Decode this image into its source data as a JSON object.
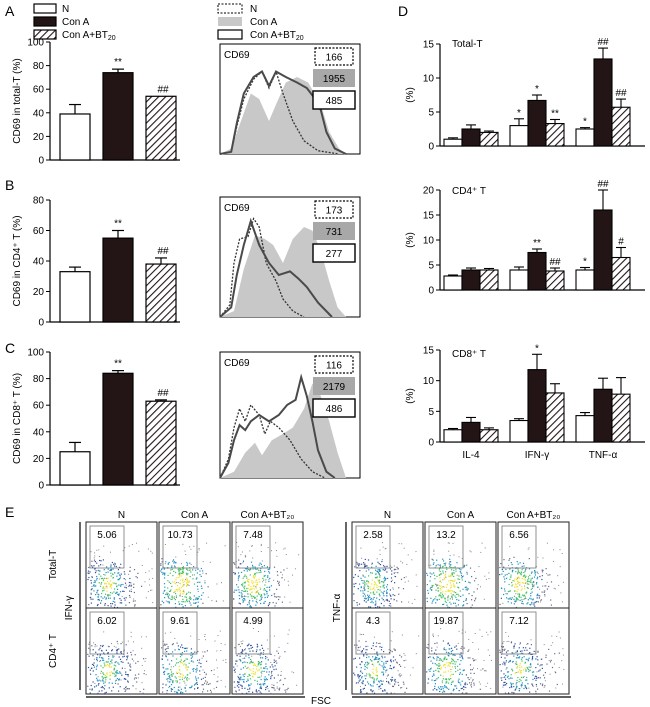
{
  "panels": {
    "A": "A",
    "B": "B",
    "C": "C",
    "D": "D",
    "E": "E"
  },
  "legend_bar": {
    "n": "N",
    "cona": "Con A",
    "conabt_main": "Con A+BT",
    "conabt_sub": "20"
  },
  "legend_hist": {
    "n": "N",
    "cona": "Con A",
    "conabt_main": "Con A+BT",
    "conabt_sub": "20"
  },
  "colors": {
    "n": "#ffffff",
    "cona": "#231416",
    "conabt_hatch": "#231416",
    "hist_fill": "#c8c8c8",
    "hist_line": "#4a4a4a"
  },
  "chart_data": [
    {
      "id": "A-bar",
      "type": "bar",
      "ylabel": "CD69 in total-T (%)",
      "yticks": [
        "0",
        "20",
        "40",
        "60",
        "80",
        "100"
      ],
      "ylim": [
        0,
        100
      ],
      "values": [
        39,
        74,
        54
      ],
      "errors": [
        8,
        3,
        0
      ],
      "annotations": [
        "",
        "**",
        "##"
      ]
    },
    {
      "id": "B-bar",
      "type": "bar",
      "ylabel": "CD69 in CD4⁺ T (%)",
      "yticks": [
        "0",
        "20",
        "40",
        "60",
        "80"
      ],
      "ylim": [
        0,
        80
      ],
      "values": [
        33,
        55,
        38
      ],
      "errors": [
        3,
        5,
        4
      ],
      "annotations": [
        "",
        "**",
        "##"
      ]
    },
    {
      "id": "C-bar",
      "type": "bar",
      "ylabel": "CD69 in CD8⁺ T (%)",
      "yticks": [
        "0",
        "20",
        "40",
        "60",
        "80",
        "100"
      ],
      "ylim": [
        0,
        100
      ],
      "values": [
        25,
        84,
        63
      ],
      "errors": [
        7,
        2,
        1
      ],
      "annotations": [
        "",
        "**",
        "##"
      ]
    },
    {
      "id": "A-hist",
      "type": "area",
      "label": "CD69",
      "mfi": {
        "n": "166",
        "cona": "1955",
        "conabt": "485"
      }
    },
    {
      "id": "B-hist",
      "type": "area",
      "label": "CD69",
      "mfi": {
        "n": "173",
        "cona": "731",
        "conabt": "277"
      }
    },
    {
      "id": "C-hist",
      "type": "area",
      "label": "CD69",
      "mfi": {
        "n": "116",
        "cona": "2179",
        "conabt": "486"
      }
    },
    {
      "id": "D-total",
      "type": "bar",
      "title": "Total-T",
      "ylabel": "(%)",
      "yticks": [
        "0",
        "5",
        "10",
        "15"
      ],
      "ylim": [
        0,
        15
      ],
      "categories": [
        "IL-4",
        "IFN-γ",
        "TNF-α"
      ],
      "series": [
        {
          "name": "N",
          "values": [
            1.0,
            3.0,
            2.5
          ],
          "errors": [
            0.2,
            1.0,
            0.2
          ]
        },
        {
          "name": "Con A",
          "values": [
            2.5,
            6.7,
            12.8
          ],
          "errors": [
            0.6,
            0.8,
            1.6
          ]
        },
        {
          "name": "Con A+BT20",
          "values": [
            2.0,
            3.3,
            5.7
          ],
          "errors": [
            0.2,
            0.6,
            1.2
          ]
        }
      ],
      "annotations": [
        [
          "",
          "*",
          "*"
        ],
        [
          "",
          "*",
          "##"
        ],
        [
          "",
          "**",
          "##"
        ]
      ]
    },
    {
      "id": "D-cd4",
      "type": "bar",
      "title": "CD4⁺ T",
      "ylabel": "(%)",
      "yticks": [
        "0",
        "5",
        "10",
        "15",
        "20"
      ],
      "ylim": [
        0,
        20
      ],
      "categories": [
        "IL-4",
        "IFN-γ",
        "TNF-α"
      ],
      "series": [
        {
          "name": "N",
          "values": [
            2.8,
            4.0,
            4.0
          ],
          "errors": [
            0.2,
            0.6,
            0.5
          ]
        },
        {
          "name": "Con A",
          "values": [
            4.0,
            7.5,
            16.0
          ],
          "errors": [
            0.4,
            0.7,
            4.0
          ]
        },
        {
          "name": "Con A+BT20",
          "values": [
            4.0,
            3.8,
            6.5
          ],
          "errors": [
            0.3,
            0.6,
            2.0
          ]
        }
      ],
      "annotations": [
        [
          "",
          "",
          "*"
        ],
        [
          "",
          "**",
          "##"
        ],
        [
          "",
          "##",
          "#"
        ]
      ]
    },
    {
      "id": "D-cd8",
      "type": "bar",
      "title": "CD8⁺ T",
      "ylabel": "(%)",
      "yticks": [
        "0",
        "5",
        "10",
        "15"
      ],
      "ylim": [
        0,
        15
      ],
      "categories": [
        "IL-4",
        "IFN-γ",
        "TNF-α"
      ],
      "series": [
        {
          "name": "N",
          "values": [
            2.0,
            3.5,
            4.3
          ],
          "errors": [
            0.2,
            0.3,
            0.5
          ]
        },
        {
          "name": "Con A",
          "values": [
            3.2,
            11.8,
            8.6
          ],
          "errors": [
            0.8,
            2.5,
            1.8
          ]
        },
        {
          "name": "Con A+BT20",
          "values": [
            2.0,
            8.0,
            7.8
          ],
          "errors": [
            0.3,
            1.5,
            2.7
          ]
        }
      ],
      "annotations": [
        [
          "",
          "",
          ""
        ],
        [
          "",
          "*",
          ""
        ],
        [
          "",
          "",
          ""
        ]
      ]
    }
  ],
  "panelE": {
    "col_headers": [
      "N",
      "Con A",
      "Con A+BT₂₀"
    ],
    "left_row_labels": [
      "Total-T",
      "CD4⁺ T"
    ],
    "left_axis_label": "IFN-γ",
    "right_axis_label": "TNF-α",
    "bottom_axis_label": "FSC",
    "left_values": [
      [
        "5.06",
        "10.73",
        "7.48"
      ],
      [
        "6.02",
        "9.61",
        "4.99"
      ]
    ],
    "right_values": [
      [
        "2.58",
        "13.2",
        "6.56"
      ],
      [
        "4.3",
        "19.87",
        "7.12"
      ]
    ]
  }
}
